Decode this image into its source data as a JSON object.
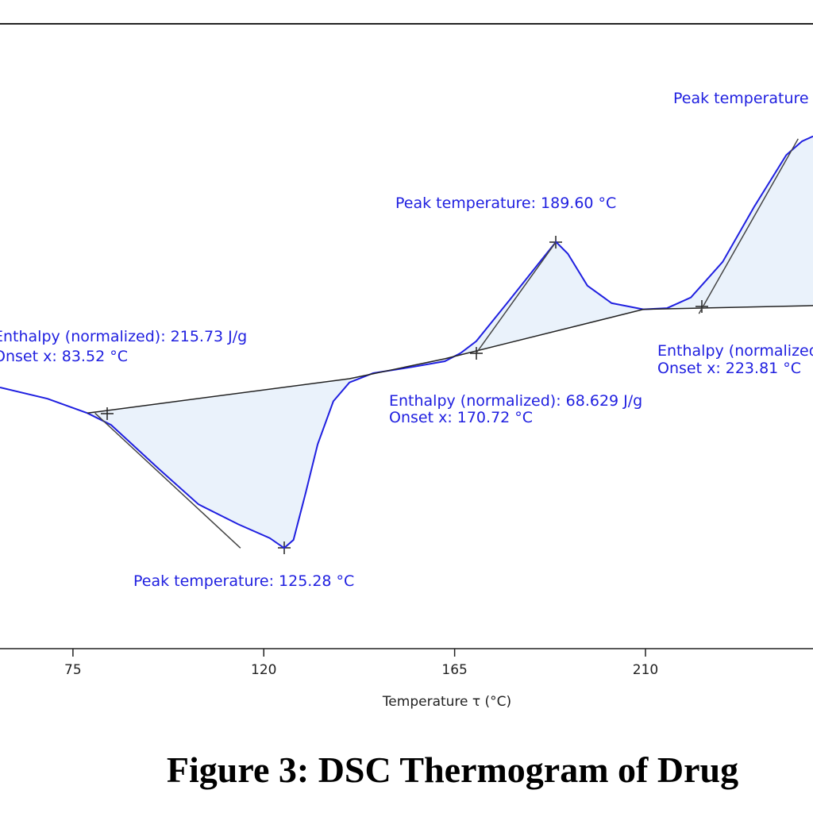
{
  "chart_data": {
    "type": "line",
    "title": "Figure 3: DSC Thermogram of Drug",
    "x_label": "Temperature τ (°C)",
    "xlim": [
      57.8,
      249.5
    ],
    "xticks": [
      75,
      120,
      165,
      210
    ],
    "ylim": [
      0,
      100
    ],
    "series": [
      {
        "color": "#1f1fe0",
        "x": [
          57.8,
          69.0,
          78.4,
          84.0,
          95.2,
          104.6,
          114.0,
          121.4,
          124.8,
          127.0,
          129.9,
          132.7,
          136.4,
          140.2,
          145.8,
          155.2,
          162.7,
          166.4,
          170.1,
          177.6,
          185.1,
          188.9,
          191.7,
          196.3,
          202.0,
          209.5,
          215.1,
          220.7,
          228.2,
          235.7,
          243.2,
          246.9,
          249.5
        ],
        "values": [
          41.8,
          40.0,
          37.7,
          35.8,
          28.8,
          23.1,
          19.9,
          17.7,
          16.1,
          17.4,
          25.0,
          32.7,
          39.6,
          42.6,
          44.1,
          45.1,
          46.0,
          47.3,
          49.2,
          55.5,
          61.9,
          65.1,
          63.2,
          58.1,
          55.3,
          54.3,
          54.5,
          56.2,
          61.9,
          70.8,
          79.0,
          81.2,
          82.0
        ]
      },
      {
        "color": "#222222",
        "x": [
          78.4,
          140.2,
          162.7,
          209.5,
          249.5
        ],
        "values": [
          37.7,
          43.2,
          46.4,
          54.3,
          54.9
        ]
      },
      {
        "color": "#444444",
        "x": [
          80.2,
          114.5,
          null,
          170.1,
          188.9,
          null,
          222.6,
          246.0
        ],
        "values": [
          37.7,
          16.1,
          null,
          47.3,
          65.1,
          null,
          53.6,
          81.6
        ]
      }
    ],
    "annotations": [
      "Enthalpy (normalized): 215.73 J/g",
      "Onset x: 83.52 °C",
      "Peak temperature: 125.28 °C",
      "Peak temperature: 189.60 °C",
      "Enthalpy (normalized): 68.629 J/g",
      "Onset x: 170.72 °C",
      "Peak temperature",
      "Enthalpy (normalized)",
      "Onset x: 223.81 °C"
    ]
  }
}
